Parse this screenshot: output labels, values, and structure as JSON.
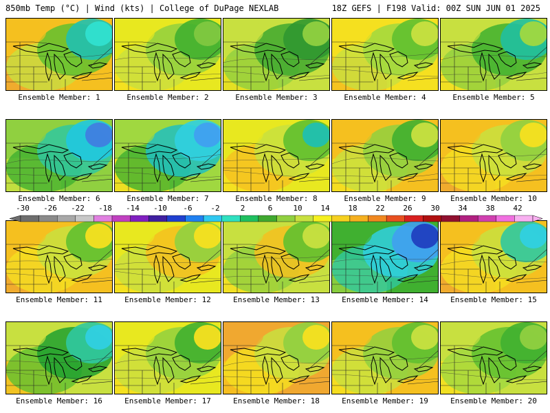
{
  "header": {
    "left_title": "850mb Temp (°C) | Wind (kts) | College of DuPage NEXLAB",
    "right_title": "18Z GEFS | F198 Valid: 00Z SUN JUN 01 2025"
  },
  "panels": [
    {
      "caption": "Ensemble Member: 1",
      "field": [
        "#f0a830",
        "#f5c020",
        "#c8e040",
        "#60c030",
        "#20c0b0",
        "#30e0d0"
      ]
    },
    {
      "caption": "Ensemble Member: 2",
      "field": [
        "#f5e020",
        "#e8e820",
        "#c8e040",
        "#90d040",
        "#40b030",
        "#80c840"
      ]
    },
    {
      "caption": "Ensemble Member: 3",
      "field": [
        "#e8e020",
        "#c8e040",
        "#90d040",
        "#40a830",
        "#309830",
        "#90d040"
      ]
    },
    {
      "caption": "Ensemble Member: 4",
      "field": [
        "#f5c020",
        "#f5e020",
        "#c8e040",
        "#a0d840",
        "#60c030",
        "#c8e040"
      ]
    },
    {
      "caption": "Ensemble Member: 5",
      "field": [
        "#f5e020",
        "#c8e040",
        "#90d040",
        "#40b030",
        "#20c0a0",
        "#a0d840"
      ]
    },
    {
      "caption": "Ensemble Member: 6",
      "field": [
        "#c8e040",
        "#90d040",
        "#40b030",
        "#30c8a0",
        "#20c8e0",
        "#4080e0"
      ]
    },
    {
      "caption": "Ensemble Member: 7",
      "field": [
        "#f5e020",
        "#a0d840",
        "#40b030",
        "#20c0c0",
        "#30d0e0",
        "#40a0f0"
      ]
    },
    {
      "caption": "Ensemble Member: 8",
      "field": [
        "#f5e020",
        "#e8e820",
        "#f5c020",
        "#c8e040",
        "#60c030",
        "#20c0b0"
      ]
    },
    {
      "caption": "Ensemble Member: 9",
      "field": [
        "#f5e020",
        "#f5c020",
        "#c8e040",
        "#90d040",
        "#40b030",
        "#c8e040"
      ]
    },
    {
      "caption": "Ensemble Member: 10",
      "field": [
        "#f0a830",
        "#f5c020",
        "#f5e020",
        "#c8e040",
        "#90d040",
        "#f5e020"
      ]
    },
    {
      "caption": "Ensemble Member: 11",
      "field": [
        "#f0a830",
        "#f5c020",
        "#f5e020",
        "#c8e040",
        "#60c030",
        "#f5e020"
      ]
    },
    {
      "caption": "Ensemble Member: 12",
      "field": [
        "#f5e020",
        "#e8e820",
        "#c8e040",
        "#f5c020",
        "#90d040",
        "#f5e020"
      ]
    },
    {
      "caption": "Ensemble Member: 13",
      "field": [
        "#f5e020",
        "#c8e040",
        "#90d040",
        "#f5c020",
        "#60c030",
        "#c8e040"
      ]
    },
    {
      "caption": "Ensemble Member: 14",
      "field": [
        "#90d040",
        "#40b030",
        "#30c8a0",
        "#30d0e0",
        "#40a0f0",
        "#2040c0"
      ]
    },
    {
      "caption": "Ensemble Member: 15",
      "field": [
        "#f0a830",
        "#f5c020",
        "#f5e020",
        "#c8e040",
        "#30c8a0",
        "#30d0e0"
      ]
    },
    {
      "caption": "Ensemble Member: 16",
      "field": [
        "#f5c020",
        "#c8e040",
        "#60c030",
        "#20a030",
        "#30c8a0",
        "#30d0e0"
      ]
    },
    {
      "caption": "Ensemble Member: 17",
      "field": [
        "#f5e020",
        "#e8e820",
        "#c8e040",
        "#90d040",
        "#40b030",
        "#f5e020"
      ]
    },
    {
      "caption": "Ensemble Member: 18",
      "field": [
        "#f5c020",
        "#f0a830",
        "#f5e020",
        "#c8e040",
        "#90d040",
        "#f5e020"
      ]
    },
    {
      "caption": "Ensemble Member: 19",
      "field": [
        "#f5e020",
        "#f5c020",
        "#c8e040",
        "#90d040",
        "#60c030",
        "#c8e040"
      ]
    },
    {
      "caption": "Ensemble Member: 20",
      "field": [
        "#f5e020",
        "#c8e040",
        "#a0d840",
        "#60c030",
        "#40b030",
        "#90d040"
      ]
    }
  ],
  "colorbar": {
    "labels": [
      "-30",
      "-26",
      "-22",
      "-18",
      "-14",
      "-10",
      "-6",
      "-2",
      "2",
      "6",
      "10",
      "14",
      "18",
      "22",
      "26",
      "30",
      "34",
      "38",
      "42"
    ],
    "colors": [
      "#6e6e6e",
      "#8a8a8a",
      "#a8a8a8",
      "#c8c8c8",
      "#e080e0",
      "#c040c0",
      "#8020c0",
      "#4020a0",
      "#2040d0",
      "#2080f0",
      "#30c8f0",
      "#30e0c0",
      "#20c060",
      "#40a830",
      "#90d040",
      "#c8e040",
      "#f5f020",
      "#f5d020",
      "#f5b020",
      "#f08820",
      "#e85020",
      "#d82020",
      "#b01010",
      "#901030",
      "#b02080",
      "#d040b0",
      "#f070e0",
      "#f8b0f0"
    ]
  }
}
